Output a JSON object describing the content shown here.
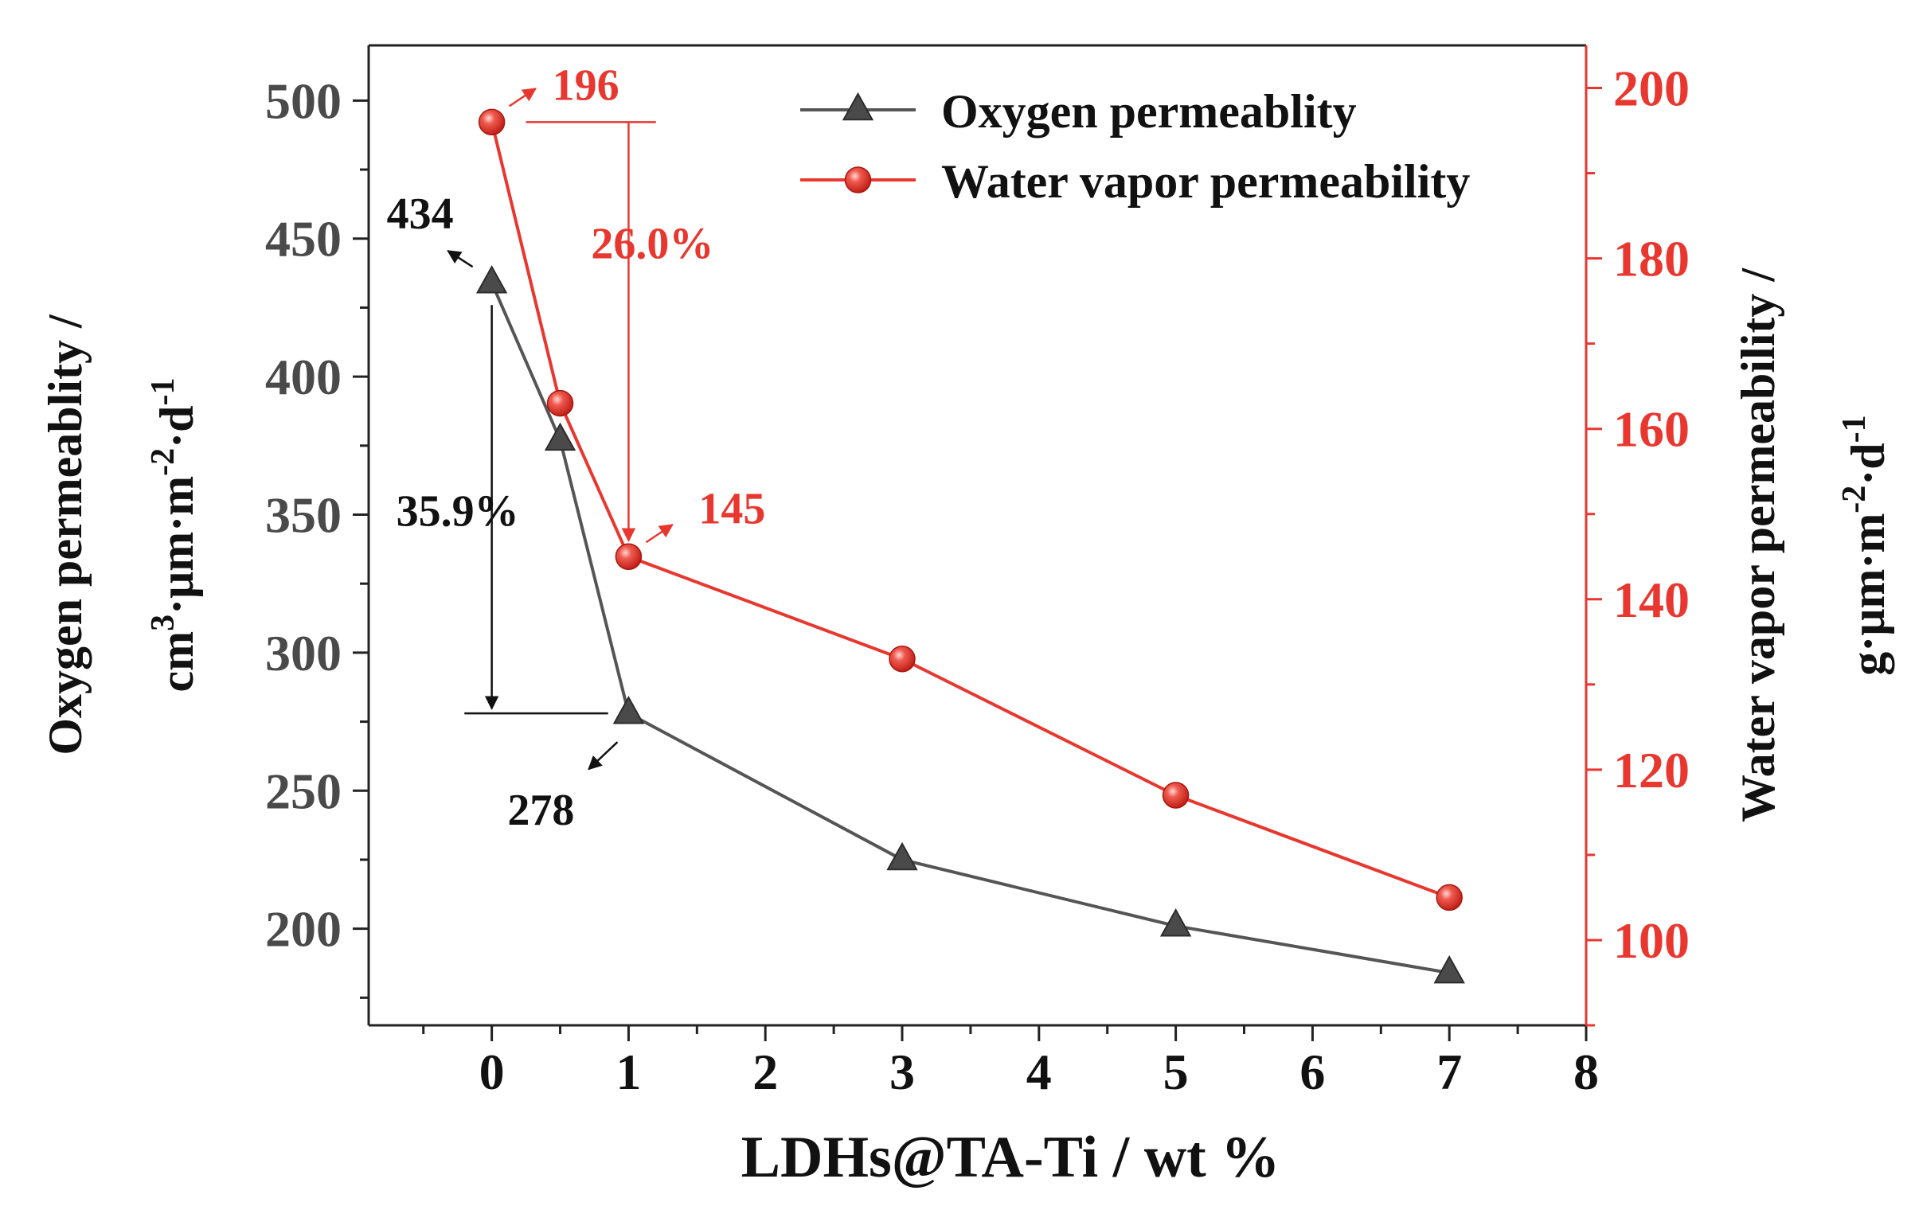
{
  "chart_data": {
    "type": "line",
    "x_label": "LDHs@TA-Ti / wt %",
    "x_ticks": [
      "0",
      "1",
      "2",
      "3",
      "4",
      "5",
      "6",
      "7",
      "8"
    ],
    "x_range": [
      -0.9,
      8
    ],
    "y_left": {
      "label_line1": "Oxygen permeablity /",
      "label_line2_parts": [
        "cm",
        "3",
        "·μm·m",
        "-2",
        "·d",
        "-1"
      ],
      "ticks": [
        "200",
        "250",
        "300",
        "350",
        "400",
        "450",
        "500"
      ],
      "range": [
        165,
        520
      ],
      "color": "#4a4a4a"
    },
    "y_right": {
      "label_line1": "Water vapor permeability /",
      "label_line2_parts": [
        "g·μm·m",
        "-2",
        "·d",
        "-1"
      ],
      "ticks": [
        "100",
        "120",
        "140",
        "160",
        "180",
        "200"
      ],
      "range": [
        90,
        205
      ],
      "color": "#e8372f"
    },
    "series": [
      {
        "name": "Oxygen permeablity",
        "axis": "left",
        "marker": "triangle",
        "color": "#3f3f3f",
        "x": [
          0,
          0.5,
          1,
          3,
          5,
          7
        ],
        "y": [
          434,
          377,
          278,
          225,
          201,
          184
        ]
      },
      {
        "name": "Water vapor permeability",
        "axis": "right",
        "marker": "circle",
        "color": "#e8372f",
        "x": [
          0,
          0.5,
          1,
          3,
          5,
          7
        ],
        "y": [
          196,
          163,
          145,
          133,
          117,
          105
        ]
      }
    ],
    "legend": {
      "position": "top-right"
    },
    "annotations": {
      "oxygen_start": "434",
      "oxygen_at_1": "278",
      "oxygen_drop": "35.9%",
      "water_start": "196",
      "water_at_1": "145",
      "water_drop": "26.0%"
    }
  }
}
